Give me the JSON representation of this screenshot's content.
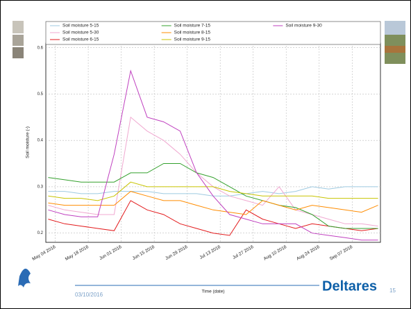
{
  "chart_data": {
    "type": "line",
    "x_label": "Time (date)",
    "y_label": "Soil moisture (-)",
    "x": [
      "2016-05-01",
      "2016-05-08",
      "2016-05-15",
      "2016-05-22",
      "2016-05-29",
      "2016-06-05",
      "2016-06-12",
      "2016-06-19",
      "2016-06-26",
      "2016-07-03",
      "2016-07-10",
      "2016-07-17",
      "2016-07-24",
      "2016-07-31",
      "2016-08-07",
      "2016-08-14",
      "2016-08-21",
      "2016-08-28",
      "2016-09-04",
      "2016-09-11",
      "2016-09-18"
    ],
    "xlim": [
      "2016-04-30",
      "2016-09-19"
    ],
    "xticks": [
      {
        "value": "2016-05-04",
        "label": "May 04 2016"
      },
      {
        "value": "2016-05-18",
        "label": "May 18 2016"
      },
      {
        "value": "2016-06-01",
        "label": "Jun 01 2016"
      },
      {
        "value": "2016-06-15",
        "label": "Jun 15 2016"
      },
      {
        "value": "2016-06-29",
        "label": "Jun 29 2016"
      },
      {
        "value": "2016-07-13",
        "label": "Jul 13 2016"
      },
      {
        "value": "2016-07-27",
        "label": "Jul 27 2016"
      },
      {
        "value": "2016-08-10",
        "label": "Aug 10 2016"
      },
      {
        "value": "2016-08-24",
        "label": "Aug 24 2016"
      },
      {
        "value": "2016-09-07",
        "label": "Sep 07 2016"
      }
    ],
    "ylim": [
      0.18,
      0.61
    ],
    "yticks": [
      0.2,
      0.3,
      0.4,
      0.5,
      0.6
    ],
    "grid": true,
    "legend": "upper center",
    "series": [
      {
        "name": "Soil moisture 5-15",
        "color": "#9ecae1",
        "values": [
          0.29,
          0.29,
          0.285,
          0.285,
          0.29,
          0.29,
          0.29,
          0.285,
          0.285,
          0.285,
          0.28,
          0.28,
          0.285,
          0.29,
          0.285,
          0.29,
          0.3,
          0.295,
          0.3,
          0.3,
          0.3
        ]
      },
      {
        "name": "Soil moisture 5-30",
        "color": "#f0a8d0",
        "values": [
          0.26,
          0.25,
          0.245,
          0.24,
          0.24,
          0.45,
          0.42,
          0.4,
          0.37,
          0.33,
          0.3,
          0.28,
          0.27,
          0.26,
          0.3,
          0.25,
          0.24,
          0.23,
          0.22,
          0.22,
          0.215
        ]
      },
      {
        "name": "Soil moisture 6-15",
        "color": "#e31a1c",
        "values": [
          0.23,
          0.22,
          0.215,
          0.21,
          0.205,
          0.27,
          0.25,
          0.24,
          0.22,
          0.21,
          0.2,
          0.195,
          0.25,
          0.23,
          0.22,
          0.21,
          0.22,
          0.215,
          0.21,
          0.205,
          0.21
        ]
      },
      {
        "name": "Soil moisture 7-15",
        "color": "#33a02c",
        "values": [
          0.32,
          0.315,
          0.31,
          0.31,
          0.31,
          0.33,
          0.33,
          0.35,
          0.35,
          0.33,
          0.32,
          0.3,
          0.28,
          0.27,
          0.26,
          0.255,
          0.24,
          0.215,
          0.21,
          0.21,
          0.21
        ]
      },
      {
        "name": "Soil moisture 8-15",
        "color": "#ff8c00",
        "values": [
          0.265,
          0.26,
          0.26,
          0.26,
          0.26,
          0.29,
          0.28,
          0.27,
          0.27,
          0.26,
          0.25,
          0.245,
          0.24,
          0.27,
          0.26,
          0.25,
          0.26,
          0.255,
          0.25,
          0.245,
          0.26
        ]
      },
      {
        "name": "Soil moisture 9-15",
        "color": "#c8c400",
        "values": [
          0.28,
          0.275,
          0.275,
          0.27,
          0.28,
          0.31,
          0.3,
          0.3,
          0.3,
          0.3,
          0.3,
          0.29,
          0.285,
          0.28,
          0.28,
          0.28,
          0.28,
          0.275,
          0.275,
          0.275,
          0.275
        ]
      },
      {
        "name": "Soil moisture 9-30",
        "color": "#bf3fbf",
        "values": [
          0.25,
          0.24,
          0.235,
          0.235,
          0.37,
          0.55,
          0.45,
          0.44,
          0.42,
          0.33,
          0.28,
          0.24,
          0.23,
          0.22,
          0.22,
          0.22,
          0.2,
          0.195,
          0.19,
          0.185,
          0.185
        ]
      }
    ]
  },
  "slide": {
    "date": "03/10/2016",
    "brand": "Deltares",
    "page": "15"
  }
}
